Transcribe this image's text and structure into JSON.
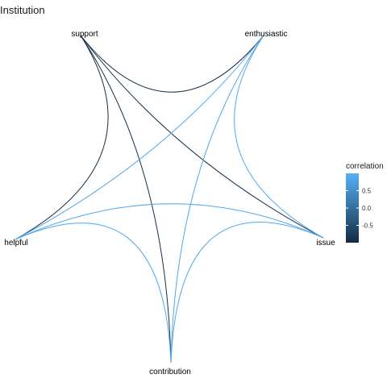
{
  "title": "Institution",
  "nodes": [
    {
      "id": "support",
      "label": "support"
    },
    {
      "id": "enthusiastic",
      "label": "enthusiastic"
    },
    {
      "id": "issue",
      "label": "issue"
    },
    {
      "id": "contribution",
      "label": "contribution"
    },
    {
      "id": "helpful",
      "label": "helpful"
    }
  ],
  "edges": [
    {
      "from": "support",
      "to": "enthusiastic",
      "correlation": -0.95
    },
    {
      "from": "support",
      "to": "helpful",
      "correlation": -0.95
    },
    {
      "from": "support",
      "to": "issue",
      "correlation": -0.9
    },
    {
      "from": "support",
      "to": "contribution",
      "correlation": -0.95
    },
    {
      "from": "enthusiastic",
      "to": "helpful",
      "correlation": 0.85
    },
    {
      "from": "enthusiastic",
      "to": "issue",
      "correlation": 0.85
    },
    {
      "from": "enthusiastic",
      "to": "contribution",
      "correlation": 0.85
    },
    {
      "from": "helpful",
      "to": "issue",
      "correlation": 0.85
    },
    {
      "from": "helpful",
      "to": "contribution",
      "correlation": 0.85
    },
    {
      "from": "issue",
      "to": "contribution",
      "correlation": 0.85
    }
  ],
  "legend": {
    "title": "correlation",
    "ticks": [
      {
        "value": 0.5,
        "label": "0.5"
      },
      {
        "value": 0.0,
        "label": "0.0"
      },
      {
        "value": -0.5,
        "label": "-0.5"
      }
    ],
    "range": [
      -1,
      1
    ],
    "colors": {
      "low": "#132b43",
      "high": "#56b1f7"
    }
  }
}
